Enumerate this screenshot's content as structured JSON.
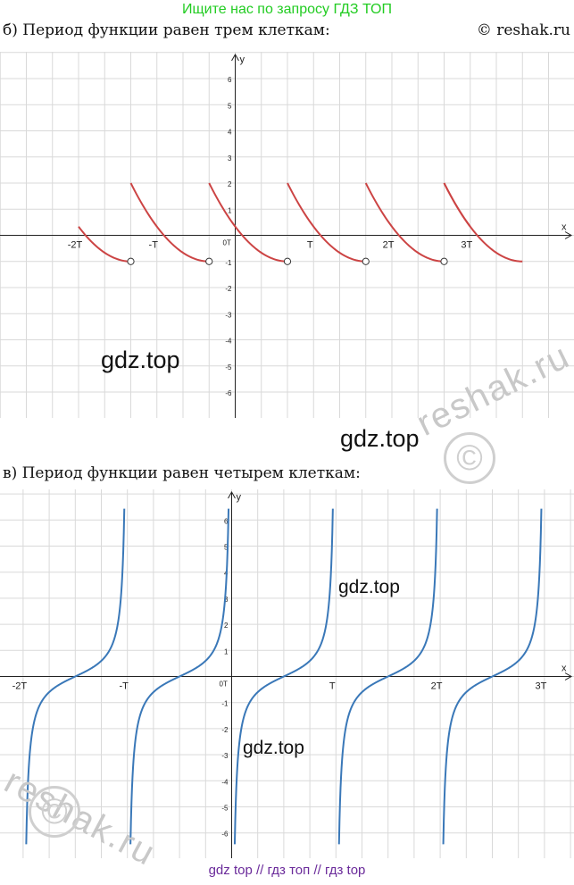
{
  "banner": {
    "text": "Ищите нас по запросу ГДЗ ТОП",
    "color": "#22cc22"
  },
  "header": {
    "heading_b": "б) Период функции равен трем клеткам:",
    "copyright": "© reshak.ru"
  },
  "section_c": {
    "heading": "в) Период функции равен четырем клеткам:"
  },
  "watermarks": {
    "gdz_1": "gdz.top",
    "gdz_2": "gdz.top",
    "gdz_3": "gdz.top",
    "gdz_4": "gdz.top",
    "reshak_1": "reshak.ru",
    "reshak_2": "reshak.ru",
    "c_symbol": "©"
  },
  "footer": {
    "link_1": "gdz top",
    "sep_1": "//",
    "link_2": "гдз топ",
    "sep_2": "//",
    "link_3": "гдз top"
  },
  "chart_data": [
    {
      "type": "line",
      "curve_color": "#cc4444",
      "axis_labels": {
        "x": "x",
        "y": "y",
        "origin": "0T"
      },
      "xlim": [
        -9,
        13
      ],
      "ylim": [
        -7,
        7
      ],
      "period": 3,
      "x_tick_labels": [
        {
          "x": -6,
          "label": "-2T"
        },
        {
          "x": -3,
          "label": "-T"
        },
        {
          "x": 3,
          "label": "T"
        },
        {
          "x": 6,
          "label": "2T"
        },
        {
          "x": 9,
          "label": "3T"
        }
      ],
      "y_tick_labels": [
        "6",
        "5",
        "4",
        "3",
        "2",
        "1",
        "-1",
        "-2",
        "-3",
        "-4",
        "-5",
        "-6"
      ],
      "y_tick_values": [
        6,
        5,
        4,
        3,
        2,
        1,
        -1,
        -2,
        -3,
        -4,
        -5,
        -6
      ],
      "segment_x_starts": [
        -4,
        -1,
        2,
        5,
        8
      ],
      "segment_start_value": 2,
      "segment_end_value": -1,
      "first_partial": {
        "x_from": -6,
        "x_to": -4,
        "y_from": 0,
        "y_to": -1
      },
      "last_partial": {
        "x_from": 8,
        "x_to": 9,
        "y_from": 2,
        "y_to": 0
      },
      "open_points": [
        {
          "x": -4,
          "y": -1
        },
        {
          "x": -1,
          "y": -1
        },
        {
          "x": 2,
          "y": -1
        },
        {
          "x": 5,
          "y": -1
        },
        {
          "x": 8,
          "y": -1
        }
      ]
    },
    {
      "type": "line",
      "curve_color": "#3a78b8",
      "axis_labels": {
        "x": "x",
        "y": "y",
        "origin": "0T"
      },
      "xlim": [
        -9,
        13
      ],
      "ylim": [
        -7,
        7
      ],
      "period": 4,
      "x_tick_labels": [
        {
          "x": -8,
          "label": "-2T"
        },
        {
          "x": -4,
          "label": "-T"
        },
        {
          "x": 4,
          "label": "T"
        },
        {
          "x": 8,
          "label": "2T"
        },
        {
          "x": 12,
          "label": "3T"
        }
      ],
      "y_tick_labels": [
        "6",
        "5",
        "4",
        "3",
        "2",
        "1",
        "-1",
        "-2",
        "-3",
        "-4",
        "-5",
        "-6"
      ],
      "y_tick_values": [
        6,
        5,
        4,
        3,
        2,
        1,
        -1,
        -2,
        -3,
        -4,
        -5,
        -6
      ],
      "zeros": [
        -6,
        -2,
        2,
        6,
        10
      ],
      "asymptotes": [
        -8,
        -4,
        0,
        4,
        8,
        12
      ]
    }
  ]
}
